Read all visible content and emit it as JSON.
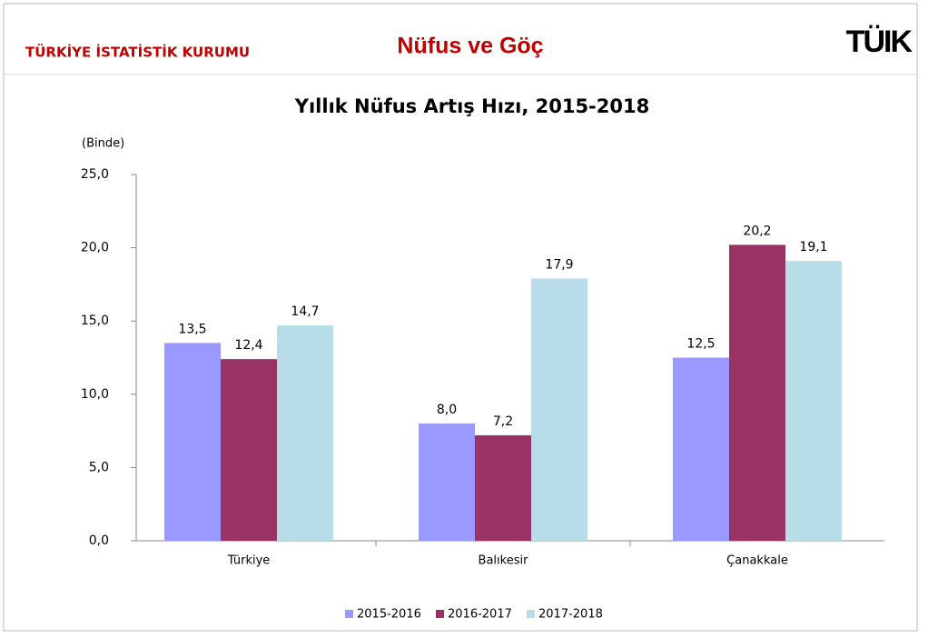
{
  "header": {
    "organization": "TÜRKİYE İSTATİSTİK KURUMU",
    "section": "Nüfus ve Göç",
    "logo": "TÜIK"
  },
  "chart_data": {
    "type": "bar",
    "title": "Yıllık Nüfus Artış Hızı, 2015-2018",
    "y_unit": "(Binde)",
    "categories": [
      "Türkiye",
      "Balıkesir",
      "Çanakkale"
    ],
    "series": [
      {
        "name": "2015-2016",
        "color": "#9999ff",
        "values": [
          13.5,
          8.0,
          12.5
        ],
        "value_labels": [
          "13,5",
          "8,0",
          "12,5"
        ]
      },
      {
        "name": "2016-2017",
        "color": "#993366",
        "values": [
          12.4,
          7.2,
          20.2
        ],
        "value_labels": [
          "12,4",
          "7,2",
          "20,2"
        ]
      },
      {
        "name": "2017-2018",
        "color": "#b7dee8",
        "values": [
          14.7,
          17.9,
          19.1
        ],
        "value_labels": [
          "14,7",
          "17,9",
          "19,1"
        ]
      }
    ],
    "ylim": [
      0,
      25
    ],
    "yticks": [
      {
        "value": 0,
        "label": "0,0"
      },
      {
        "value": 5,
        "label": "5,0"
      },
      {
        "value": 10,
        "label": "10,0"
      },
      {
        "value": 15,
        "label": "15,0"
      },
      {
        "value": 20,
        "label": "20,0"
      },
      {
        "value": 25,
        "label": "25,0"
      }
    ],
    "legend": "bottom"
  }
}
